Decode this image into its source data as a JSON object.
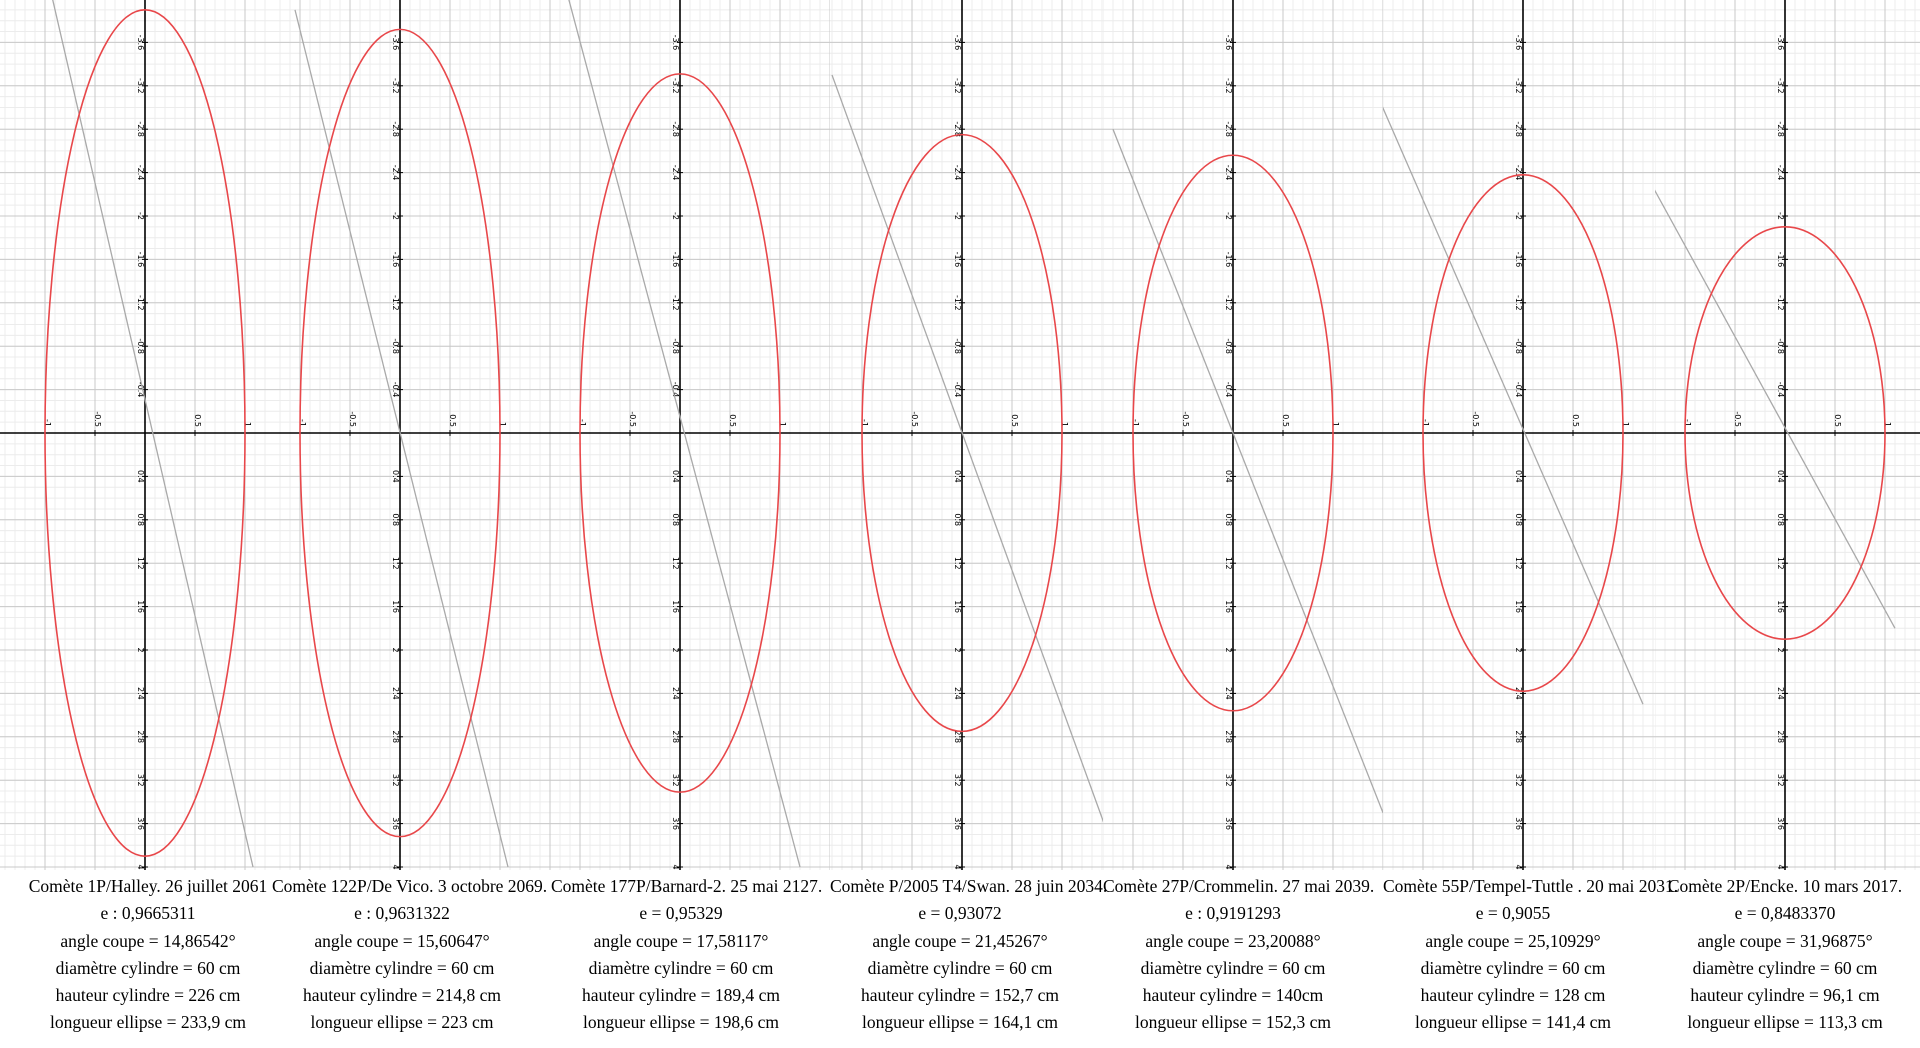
{
  "chart_data": [
    {
      "type": "line",
      "x_tick_labels": [
        "-1",
        "-0.5",
        "0.5",
        "1"
      ],
      "y_tick_labels": [
        "-3.6",
        "-3.2",
        "-2.8",
        "-2.4",
        "-2",
        "-1.6",
        "-1.2",
        "-0.8",
        "-0.4",
        "0.4",
        "0.8",
        "1.2",
        "1.6",
        "2",
        "2.4",
        "2.8",
        "3.2",
        "3.6",
        "4"
      ],
      "ellipse": {
        "semi_axis_x": 1,
        "semi_axis_y": 3.9
      },
      "cut_line": {
        "from": [
          -1,
          -4.3
        ],
        "to": [
          1.08,
          4
        ]
      },
      "caption": [
        "Comète 1P/Halley. 26 juillet 2061",
        "e : 0,9665311",
        "angle coupe = 14,86542°",
        "diamètre cylindre = 60 cm",
        "hauteur cylindre = 226 cm",
        "longueur ellipse = 233,9 cm"
      ]
    },
    {
      "type": "line",
      "x_tick_labels": [
        "-1",
        "-0.5",
        "0.5",
        "1"
      ],
      "y_tick_labels": [
        "-3.6",
        "-3.2",
        "-2.8",
        "-2.4",
        "-2",
        "-1.6",
        "-1.2",
        "-0.8",
        "-0.4",
        "0.4",
        "0.8",
        "1.2",
        "1.6",
        "2",
        "2.4",
        "2.8",
        "3.2",
        "3.6",
        "4"
      ],
      "ellipse": {
        "semi_axis_x": 1,
        "semi_axis_y": 3.72
      },
      "cut_line": {
        "from": [
          -1.05,
          -3.9
        ],
        "to": [
          1.08,
          4
        ]
      },
      "caption": [
        "Comète 122P/De Vico. 3 octobre 2069.",
        "e : 0,9631322",
        "angle coupe = 15,60647°",
        "diamètre cylindre = 60 cm",
        "hauteur cylindre = 214,8 cm",
        "longueur ellipse = 223 cm"
      ]
    },
    {
      "type": "line",
      "x_tick_labels": [
        "-1",
        "-0.5",
        "0.5",
        "1"
      ],
      "y_tick_labels": [
        "-3.6",
        "-3.2",
        "-2.8",
        "-2.4",
        "-2",
        "-1.6",
        "-1.2",
        "-0.8",
        "-0.4",
        "0.4",
        "0.8",
        "1.2",
        "1.6",
        "2",
        "2.4",
        "2.8",
        "3.2",
        "3.6",
        "4"
      ],
      "ellipse": {
        "semi_axis_x": 1,
        "semi_axis_y": 3.31
      },
      "cut_line": {
        "from": [
          -1.2,
          -4.3
        ],
        "to": [
          1.2,
          4
        ]
      },
      "caption": [
        "Comète 177P/Barnard-2. 25 mai 2127.",
        "e = 0,95329",
        "angle coupe = 17,58117°",
        "diamètre cylindre = 60 cm",
        "hauteur cylindre = 189,4 cm",
        "longueur ellipse = 198,6 cm"
      ]
    },
    {
      "type": "line",
      "x_tick_labels": [
        "-1",
        "-0.5",
        "0.5",
        "1"
      ],
      "y_tick_labels": [
        "-3.6",
        "-3.2",
        "-2.8",
        "-2.4",
        "-2",
        "-1.6",
        "-1.2",
        "-0.8",
        "-0.4",
        "0.4",
        "0.8",
        "1.2",
        "1.6",
        "2",
        "2.4",
        "2.8",
        "3.2",
        "3.6",
        "4"
      ],
      "ellipse": {
        "semi_axis_x": 1,
        "semi_axis_y": 2.75
      },
      "cut_line": {
        "from": [
          -1.3,
          -3.3
        ],
        "to": [
          1.5,
          3.8
        ]
      },
      "caption": [
        "Comète P/2005 T4/Swan. 28 juin 2034.",
        "e = 0,93072",
        "angle coupe = 21,45267°",
        "diamètre cylindre = 60 cm",
        "hauteur cylindre = 152,7 cm",
        "longueur ellipse = 164,1 cm"
      ]
    },
    {
      "type": "line",
      "x_tick_labels": [
        "-1",
        "-0.5",
        "0.5",
        "1"
      ],
      "y_tick_labels": [
        "-3.6",
        "-3.2",
        "-2.8",
        "-2.4",
        "-2",
        "-1.6",
        "-1.2",
        "-0.8",
        "-0.4",
        "0.4",
        "0.8",
        "1.2",
        "1.6",
        "2",
        "2.4",
        "2.8",
        "3.2",
        "3.6",
        "4"
      ],
      "ellipse": {
        "semi_axis_x": 1,
        "semi_axis_y": 2.56
      },
      "cut_line": {
        "from": [
          -1.2,
          -2.8
        ],
        "to": [
          1.5,
          3.5
        ]
      },
      "caption": [
        "Comète 27P/Crommelin. 27 mai 2039.",
        "e : 0,9191293",
        "angle coupe = 23,20088°",
        "diamètre cylindre = 60 cm",
        "hauteur cylindre = 140cm",
        "longueur ellipse = 152,3 cm"
      ]
    },
    {
      "type": "line",
      "x_tick_labels": [
        "-1",
        "-0.5",
        "0.5",
        "1"
      ],
      "y_tick_labels": [
        "-3.6",
        "-3.2",
        "-2.8",
        "-2.4",
        "-2",
        "-1.6",
        "-1.2",
        "-0.8",
        "-0.4",
        "0.4",
        "0.8",
        "1.2",
        "1.6",
        "2",
        "2.4",
        "2.8",
        "3.2",
        "3.6",
        "4"
      ],
      "ellipse": {
        "semi_axis_x": 1,
        "semi_axis_y": 2.38
      },
      "cut_line": {
        "from": [
          -1.45,
          -3.1
        ],
        "to": [
          1.2,
          2.5
        ]
      },
      "caption": [
        "Comète 55P/Tempel-Tuttle . 20 mai 2031.",
        "e = 0,9055",
        "angle coupe = 25,10929°",
        "diamètre cylindre = 60 cm",
        "hauteur cylindre = 128 cm",
        "longueur ellipse = 141,4 cm"
      ]
    },
    {
      "type": "line",
      "x_tick_labels": [
        "-1",
        "-0.5",
        "0.5",
        "1"
      ],
      "y_tick_labels": [
        "-3.6",
        "-3.2",
        "-2.8",
        "-2.4",
        "-2",
        "-1.6",
        "-1.2",
        "-0.8",
        "-0.4",
        "0.4",
        "0.8",
        "1.2",
        "1.6",
        "2",
        "2.4",
        "2.8",
        "3.2",
        "3.6",
        "4"
      ],
      "ellipse": {
        "semi_axis_x": 1,
        "semi_axis_y": 1.9
      },
      "cut_line": {
        "from": [
          -1.4,
          -2.4
        ],
        "to": [
          1.1,
          1.8
        ]
      },
      "caption": [
        "Comète 2P/Encke. 10 mars 2017.",
        "e = 0,8483370",
        "angle coupe = 31,96875°",
        "diamètre cylindre = 60 cm",
        "hauteur cylindre = 96,1 cm",
        "longueur ellipse = 113,3 cm"
      ]
    }
  ],
  "colors": {
    "grid_minor": "#ececec",
    "grid_major": "#c9c9c9",
    "axis": "#000000",
    "ellipse": "#e8474a",
    "cut_line": "#a9a9a9",
    "text": "#000000"
  }
}
